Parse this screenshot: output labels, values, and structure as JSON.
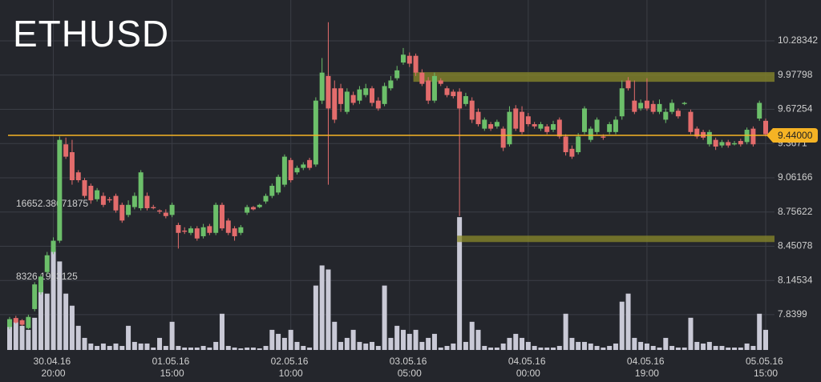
{
  "chart_data": {
    "type": "candlestick",
    "title": "ETHUSD",
    "categories": [
      null,
      null,
      null,
      null,
      null,
      null,
      null,
      "30.04.16 20:00",
      null,
      null,
      null,
      null,
      null,
      null,
      null,
      null,
      null,
      null,
      null,
      null,
      null,
      null,
      null,
      null,
      null,
      null,
      "01.05.16 15:00",
      null,
      null,
      null,
      null,
      null,
      null,
      null,
      null,
      null,
      null,
      null,
      null,
      null,
      null,
      null,
      null,
      null,
      null,
      "02.05.16 10:00",
      null,
      null,
      null,
      null,
      null,
      null,
      null,
      null,
      null,
      null,
      null,
      null,
      null,
      null,
      null,
      null,
      null,
      null,
      "03.05.16 05:00",
      null,
      null,
      null,
      null,
      null,
      null,
      null,
      null,
      null,
      null,
      null,
      null,
      null,
      null,
      null,
      null,
      null,
      null,
      "04.05.16 00:00",
      null,
      null,
      null,
      null,
      null,
      null,
      null,
      null,
      null,
      null,
      null,
      null,
      null,
      null,
      null,
      null,
      null,
      null,
      "04.05.16 19:00",
      null,
      null,
      null,
      null,
      null,
      null,
      null,
      null,
      null,
      null,
      null,
      null,
      null,
      null,
      null,
      null,
      null,
      null,
      "05.05.16 15:00"
    ],
    "open": [
      7.73,
      7.81,
      7.79,
      7.72,
      7.89,
      8.04,
      8.22,
      8.4,
      8.5,
      9.36,
      9.29,
      9.11,
      9.04,
      8.99,
      8.87,
      8.9,
      8.87,
      8.9,
      8.82,
      8.73,
      8.8,
      8.79,
      8.9,
      8.8,
      8.77,
      8.75,
      8.73,
      8.64,
      8.59,
      8.57,
      8.61,
      8.54,
      8.63,
      8.57,
      8.82,
      8.68,
      8.61,
      8.57,
      8.75,
      8.8,
      8.8,
      8.85,
      8.9,
      8.93,
      9.0,
      9.22,
      9.11,
      9.15,
      9.22,
      9.18,
      9.75,
      9.97,
      9.86,
      9.86,
      9.65,
      9.8,
      9.75,
      9.8,
      9.86,
      9.75,
      9.72,
      9.86,
      9.95,
      10.09,
      10.15,
      10.15,
      10.0,
      9.93,
      9.75,
      9.93,
      9.86,
      9.83,
      9.83,
      9.72,
      9.75,
      9.65,
      9.5,
      9.54,
      9.52,
      9.5,
      9.36,
      9.68,
      9.65,
      9.61,
      9.54,
      9.5,
      9.52,
      9.49,
      9.58,
      9.43,
      9.32,
      9.29,
      9.47,
      9.4,
      9.47,
      9.43,
      9.47,
      9.47,
      9.61,
      9.93,
      9.75,
      9.68,
      9.75,
      9.72,
      9.65,
      9.58,
      9.65,
      9.66,
      9.72,
      9.65,
      9.5,
      9.47,
      9.36,
      9.4,
      9.35,
      9.38,
      9.36,
      9.39,
      9.38,
      9.5,
      9.59,
      9.57
    ],
    "high": [
      7.82,
      7.83,
      7.8,
      7.84,
      8.13,
      8.2,
      8.4,
      8.53,
      9.43,
      9.42,
      9.4,
      9.13,
      9.06,
      9.01,
      8.97,
      8.93,
      8.89,
      8.92,
      8.84,
      8.86,
      8.93,
      9.13,
      8.93,
      8.82,
      8.78,
      8.78,
      8.84,
      8.66,
      8.62,
      8.63,
      8.63,
      8.65,
      8.65,
      8.84,
      8.84,
      8.7,
      8.63,
      8.64,
      8.82,
      8.81,
      8.83,
      8.92,
      9.01,
      9.09,
      9.27,
      9.24,
      9.17,
      9.2,
      9.24,
      9.78,
      10.13,
      10.45,
      9.93,
      9.9,
      9.86,
      9.83,
      9.88,
      9.9,
      9.88,
      9.78,
      9.91,
      9.97,
      10.06,
      10.22,
      10.18,
      10.17,
      10.03,
      9.96,
      10.0,
      9.95,
      9.88,
      9.85,
      9.86,
      9.82,
      9.78,
      9.68,
      9.6,
      9.56,
      9.58,
      9.52,
      9.7,
      9.71,
      9.7,
      9.64,
      9.56,
      9.56,
      9.54,
      9.57,
      9.6,
      9.45,
      9.35,
      9.46,
      9.7,
      9.52,
      9.6,
      9.45,
      9.56,
      9.61,
      9.93,
      9.96,
      9.93,
      9.76,
      9.95,
      9.75,
      9.76,
      9.68,
      9.76,
      9.68,
      9.74,
      9.67,
      9.52,
      9.49,
      9.49,
      9.42,
      9.4,
      9.4,
      9.39,
      9.41,
      9.51,
      9.52,
      9.75,
      9.59
    ],
    "low": [
      7.71,
      7.76,
      7.74,
      7.71,
      7.87,
      8.02,
      8.2,
      8.38,
      8.48,
      9.23,
      9.0,
      9.02,
      8.88,
      8.83,
      8.85,
      8.8,
      8.84,
      8.75,
      8.66,
      8.71,
      8.78,
      8.77,
      8.77,
      8.78,
      8.74,
      8.7,
      8.71,
      8.43,
      8.56,
      8.55,
      8.5,
      8.52,
      8.55,
      8.55,
      8.59,
      8.55,
      8.5,
      8.55,
      8.73,
      8.77,
      8.79,
      8.83,
      8.88,
      8.91,
      8.98,
      9.02,
      9.09,
      9.13,
      9.13,
      9.16,
      9.72,
      9.0,
      9.55,
      9.65,
      9.63,
      9.71,
      9.72,
      9.78,
      9.7,
      9.66,
      9.7,
      9.84,
      9.93,
      10.07,
      10.05,
      9.97,
      9.88,
      9.72,
      9.73,
      9.88,
      9.78,
      9.77,
      8.72,
      9.7,
      9.55,
      9.52,
      9.48,
      9.48,
      9.5,
      9.3,
      9.34,
      9.48,
      9.45,
      9.52,
      9.5,
      9.48,
      9.45,
      9.47,
      9.41,
      9.26,
      9.23,
      9.27,
      9.45,
      9.38,
      9.45,
      9.4,
      9.45,
      9.45,
      9.58,
      9.84,
      9.63,
      9.66,
      9.66,
      9.63,
      9.63,
      9.55,
      9.63,
      9.59,
      9.71,
      9.45,
      9.41,
      9.4,
      9.34,
      9.31,
      9.33,
      9.33,
      9.35,
      9.34,
      9.36,
      9.34,
      9.57,
      9.43
    ],
    "close": [
      7.8,
      7.77,
      7.75,
      7.82,
      8.11,
      8.18,
      8.37,
      8.5,
      9.4,
      9.25,
      9.04,
      9.04,
      8.9,
      8.86,
      8.95,
      8.82,
      8.86,
      8.77,
      8.68,
      8.82,
      8.9,
      9.11,
      8.79,
      8.79,
      8.76,
      8.72,
      8.82,
      8.57,
      8.58,
      8.61,
      8.52,
      8.62,
      8.57,
      8.82,
      8.61,
      8.57,
      8.54,
      8.62,
      8.8,
      8.78,
      8.82,
      8.9,
      8.99,
      9.07,
      9.25,
      9.04,
      9.15,
      9.18,
      9.15,
      9.75,
      10.0,
      9.68,
      9.58,
      9.72,
      9.83,
      9.73,
      9.85,
      9.86,
      9.73,
      9.68,
      9.88,
      9.93,
      10.02,
      10.16,
      10.08,
      10.0,
      9.9,
      9.75,
      9.97,
      9.9,
      9.8,
      9.79,
      9.68,
      9.79,
      9.58,
      9.54,
      9.58,
      9.5,
      9.56,
      9.33,
      9.65,
      9.5,
      9.47,
      9.54,
      9.52,
      9.54,
      9.47,
      9.54,
      9.43,
      9.29,
      9.25,
      9.43,
      9.68,
      9.5,
      9.58,
      9.42,
      9.54,
      9.58,
      9.86,
      9.86,
      9.65,
      9.73,
      9.68,
      9.65,
      9.72,
      9.65,
      9.73,
      9.61,
      9.73,
      9.47,
      9.43,
      9.42,
      9.47,
      9.34,
      9.38,
      9.35,
      9.37,
      9.36,
      9.49,
      9.36,
      9.73,
      9.45
    ],
    "volume": [
      2760,
      3220,
      2760,
      2300,
      3680,
      7360,
      6440,
      11500,
      10120,
      6440,
      5060,
      2760,
      1380,
      736,
      460,
      736,
      460,
      736,
      460,
      2760,
      920,
      736,
      736,
      276,
      1380,
      460,
      3220,
      460,
      276,
      276,
      276,
      460,
      276,
      920,
      4140,
      460,
      276,
      184,
      276,
      276,
      184,
      460,
      2300,
      1840,
      1380,
      2300,
      920,
      460,
      276,
      7360,
      9660,
      9200,
      3220,
      920,
      1380,
      2300,
      920,
      736,
      920,
      460,
      7360,
      1380,
      2760,
      2300,
      1840,
      2300,
      920,
      1380,
      1840,
      276,
      460,
      736,
      15180,
      920,
      3220,
      2300,
      460,
      276,
      276,
      736,
      1380,
      1840,
      1380,
      920,
      460,
      276,
      276,
      276,
      460,
      4140,
      1380,
      920,
      920,
      736,
      460,
      276,
      460,
      736,
      5520,
      6440,
      1380,
      920,
      736,
      460,
      276,
      1380,
      460,
      276,
      276,
      3680,
      920,
      736,
      920,
      460,
      460,
      276,
      276,
      276,
      736,
      460,
      4140,
      2300
    ],
    "up_color": "#6cbf6a",
    "down_color": "#e36c6c",
    "volume_color": "#c9c9d6",
    "ylim": [
      7.525,
      10.648
    ],
    "yticks": [
      10.28342,
      9.97798,
      9.67254,
      9.3671,
      9.06166,
      8.75622,
      8.45078,
      8.14534,
      7.8399
    ],
    "volume_lim": [
      0,
      40000
    ],
    "volume_ticks": [
      16652.38671875,
      8326.1953125
    ],
    "price_line": {
      "value": 9.44,
      "label": "9.44000",
      "color": "#f5b324"
    },
    "zones": [
      {
        "low": 9.918,
        "high": 10.004,
        "start": 65
      },
      {
        "low": 8.488,
        "high": 8.545,
        "start": 72
      }
    ],
    "zone_color": "#8a8a2a",
    "grid": true
  }
}
